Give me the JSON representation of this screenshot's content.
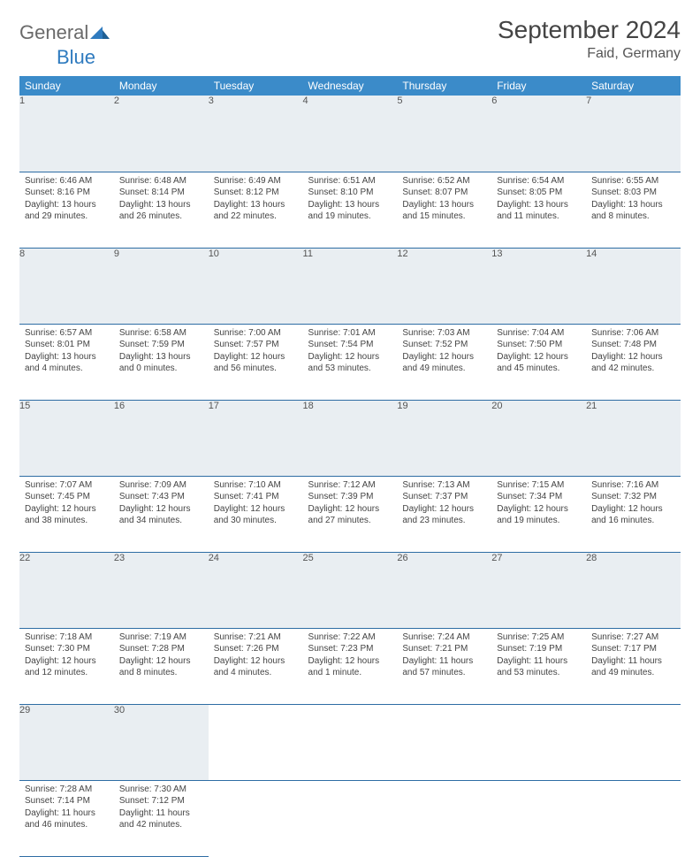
{
  "logo": {
    "text_general": "General",
    "text_blue": "Blue"
  },
  "header": {
    "month_title": "September 2024",
    "location": "Faid, Germany"
  },
  "colors": {
    "header_bg": "#3b8bc9",
    "header_text": "#ffffff",
    "daynum_bg": "#e9eef2",
    "rule": "#2e6da4",
    "body_text": "#444444",
    "logo_gray": "#6a6a6a",
    "logo_blue": "#2f7bbf"
  },
  "typography": {
    "month_title_pt": 28,
    "location_pt": 16,
    "weekday_header_pt": 12,
    "daynum_pt": 11,
    "cell_body_pt": 10
  },
  "weekdays": [
    "Sunday",
    "Monday",
    "Tuesday",
    "Wednesday",
    "Thursday",
    "Friday",
    "Saturday"
  ],
  "weeks": [
    [
      {
        "n": "1",
        "sunrise": "6:46 AM",
        "sunset": "8:16 PM",
        "daylight": "13 hours and 29 minutes."
      },
      {
        "n": "2",
        "sunrise": "6:48 AM",
        "sunset": "8:14 PM",
        "daylight": "13 hours and 26 minutes."
      },
      {
        "n": "3",
        "sunrise": "6:49 AM",
        "sunset": "8:12 PM",
        "daylight": "13 hours and 22 minutes."
      },
      {
        "n": "4",
        "sunrise": "6:51 AM",
        "sunset": "8:10 PM",
        "daylight": "13 hours and 19 minutes."
      },
      {
        "n": "5",
        "sunrise": "6:52 AM",
        "sunset": "8:07 PM",
        "daylight": "13 hours and 15 minutes."
      },
      {
        "n": "6",
        "sunrise": "6:54 AM",
        "sunset": "8:05 PM",
        "daylight": "13 hours and 11 minutes."
      },
      {
        "n": "7",
        "sunrise": "6:55 AM",
        "sunset": "8:03 PM",
        "daylight": "13 hours and 8 minutes."
      }
    ],
    [
      {
        "n": "8",
        "sunrise": "6:57 AM",
        "sunset": "8:01 PM",
        "daylight": "13 hours and 4 minutes."
      },
      {
        "n": "9",
        "sunrise": "6:58 AM",
        "sunset": "7:59 PM",
        "daylight": "13 hours and 0 minutes."
      },
      {
        "n": "10",
        "sunrise": "7:00 AM",
        "sunset": "7:57 PM",
        "daylight": "12 hours and 56 minutes."
      },
      {
        "n": "11",
        "sunrise": "7:01 AM",
        "sunset": "7:54 PM",
        "daylight": "12 hours and 53 minutes."
      },
      {
        "n": "12",
        "sunrise": "7:03 AM",
        "sunset": "7:52 PM",
        "daylight": "12 hours and 49 minutes."
      },
      {
        "n": "13",
        "sunrise": "7:04 AM",
        "sunset": "7:50 PM",
        "daylight": "12 hours and 45 minutes."
      },
      {
        "n": "14",
        "sunrise": "7:06 AM",
        "sunset": "7:48 PM",
        "daylight": "12 hours and 42 minutes."
      }
    ],
    [
      {
        "n": "15",
        "sunrise": "7:07 AM",
        "sunset": "7:45 PM",
        "daylight": "12 hours and 38 minutes."
      },
      {
        "n": "16",
        "sunrise": "7:09 AM",
        "sunset": "7:43 PM",
        "daylight": "12 hours and 34 minutes."
      },
      {
        "n": "17",
        "sunrise": "7:10 AM",
        "sunset": "7:41 PM",
        "daylight": "12 hours and 30 minutes."
      },
      {
        "n": "18",
        "sunrise": "7:12 AM",
        "sunset": "7:39 PM",
        "daylight": "12 hours and 27 minutes."
      },
      {
        "n": "19",
        "sunrise": "7:13 AM",
        "sunset": "7:37 PM",
        "daylight": "12 hours and 23 minutes."
      },
      {
        "n": "20",
        "sunrise": "7:15 AM",
        "sunset": "7:34 PM",
        "daylight": "12 hours and 19 minutes."
      },
      {
        "n": "21",
        "sunrise": "7:16 AM",
        "sunset": "7:32 PM",
        "daylight": "12 hours and 16 minutes."
      }
    ],
    [
      {
        "n": "22",
        "sunrise": "7:18 AM",
        "sunset": "7:30 PM",
        "daylight": "12 hours and 12 minutes."
      },
      {
        "n": "23",
        "sunrise": "7:19 AM",
        "sunset": "7:28 PM",
        "daylight": "12 hours and 8 minutes."
      },
      {
        "n": "24",
        "sunrise": "7:21 AM",
        "sunset": "7:26 PM",
        "daylight": "12 hours and 4 minutes."
      },
      {
        "n": "25",
        "sunrise": "7:22 AM",
        "sunset": "7:23 PM",
        "daylight": "12 hours and 1 minute."
      },
      {
        "n": "26",
        "sunrise": "7:24 AM",
        "sunset": "7:21 PM",
        "daylight": "11 hours and 57 minutes."
      },
      {
        "n": "27",
        "sunrise": "7:25 AM",
        "sunset": "7:19 PM",
        "daylight": "11 hours and 53 minutes."
      },
      {
        "n": "28",
        "sunrise": "7:27 AM",
        "sunset": "7:17 PM",
        "daylight": "11 hours and 49 minutes."
      }
    ],
    [
      {
        "n": "29",
        "sunrise": "7:28 AM",
        "sunset": "7:14 PM",
        "daylight": "11 hours and 46 minutes."
      },
      {
        "n": "30",
        "sunrise": "7:30 AM",
        "sunset": "7:12 PM",
        "daylight": "11 hours and 42 minutes."
      },
      null,
      null,
      null,
      null,
      null
    ]
  ],
  "labels": {
    "sunrise": "Sunrise:",
    "sunset": "Sunset:",
    "daylight": "Daylight:"
  }
}
